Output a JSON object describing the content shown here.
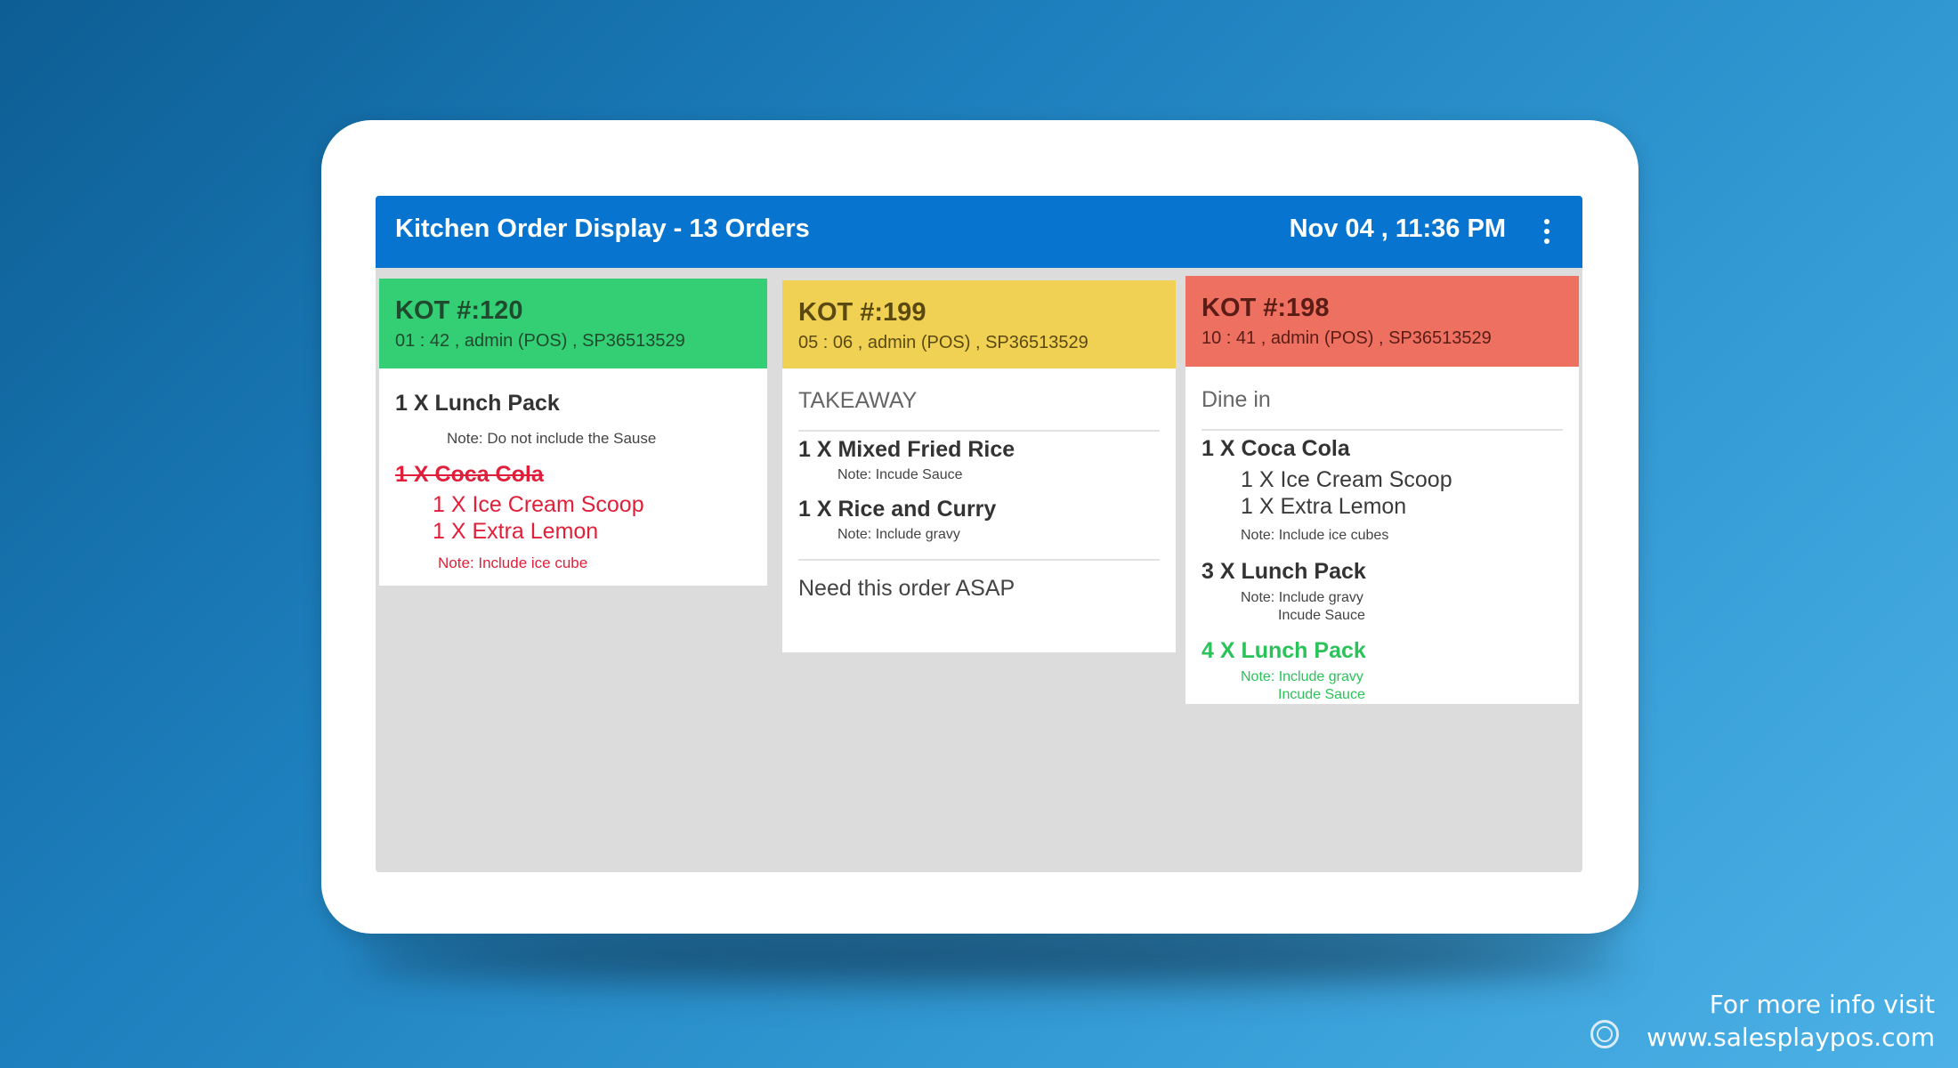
{
  "header": {
    "title": "Kitchen Order Display - 13 Orders",
    "datetime": "Nov 04 , 11:36 PM",
    "menu_icon": "more-vertical-icon"
  },
  "colors": {
    "appbar": "#0775d0",
    "status_new": "#34cf75",
    "status_warning": "#f1d153",
    "status_late": "#ee7061",
    "cancelled_item": "#e0203a",
    "added_item": "#2cc25a"
  },
  "orders": [
    {
      "kot": "KOT #:120",
      "meta": "01 : 42 , admin (POS) , SP36513529",
      "items": [
        {
          "title": "1 X Lunch Pack",
          "note": "Note: Do not include the Sause"
        },
        {
          "title": "1 X Coca Cola",
          "status": "cancelled",
          "addons": [
            "1 X Ice Cream Scoop",
            "1 X Extra Lemon"
          ],
          "note": "Note: Include ice cube"
        }
      ]
    },
    {
      "kot": "KOT #:199",
      "meta": "05 : 06 , admin (POS) , SP36513529",
      "order_type": "TAKEAWAY",
      "items": [
        {
          "title": "1 X Mixed Fried Rice",
          "note": "Note: Incude Sauce"
        },
        {
          "title": "1 X Rice and Curry",
          "note": "Note: Include gravy"
        }
      ],
      "order_note": "Need this order ASAP"
    },
    {
      "kot": "KOT #:198",
      "meta": "10 : 41 , admin (POS) , SP36513529",
      "order_type": "Dine in",
      "items": [
        {
          "title": "1 X Coca Cola",
          "addons": [
            "1 X Ice Cream Scoop",
            "1 X Extra Lemon"
          ],
          "note": "Note: Include ice cubes"
        },
        {
          "title": "3 X Lunch Pack",
          "note_lines": [
            "Note: Include gravy",
            "Incude Sauce"
          ]
        },
        {
          "title": "4 X Lunch Pack",
          "status": "added",
          "note_lines": [
            "Note: Include gravy",
            "Incude Sauce"
          ]
        }
      ]
    }
  ],
  "footer": {
    "line1": "For more info visit",
    "line2": "www.salesplaypos.com",
    "icon": "dribbble-icon"
  }
}
